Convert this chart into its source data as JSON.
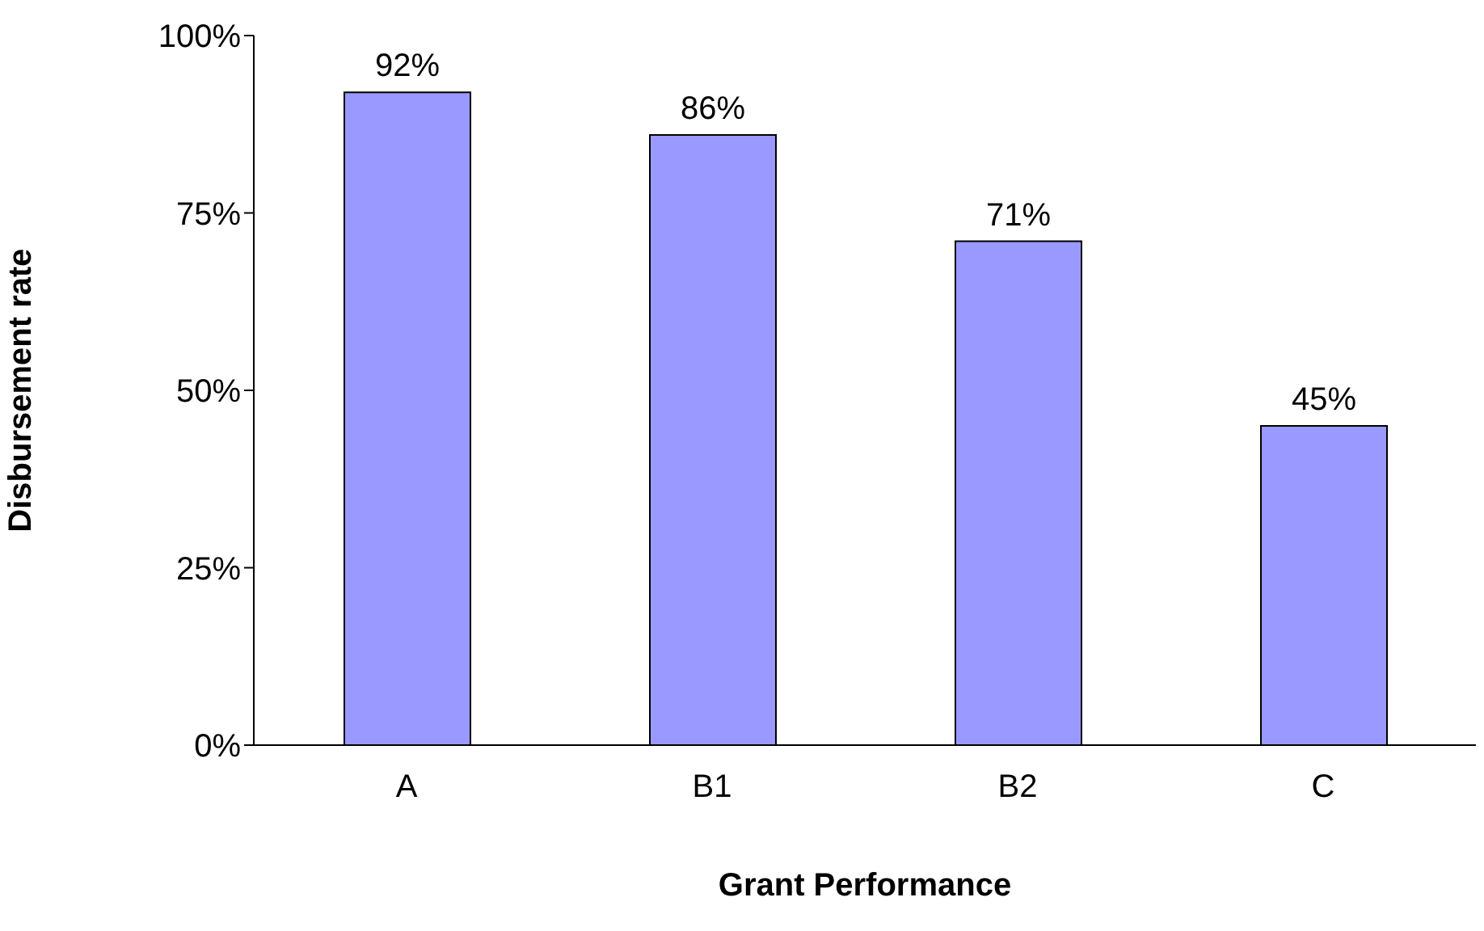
{
  "chart_data": {
    "type": "bar",
    "xlabel": "Grant Performance",
    "ylabel": "Disbursement rate",
    "categories": [
      "A",
      "B1",
      "B2",
      "C"
    ],
    "values": [
      92,
      86,
      71,
      45
    ],
    "color": "#9999ff",
    "value_labels": [
      "92%",
      "86%",
      "71%",
      "45%"
    ],
    "ylim": [
      0,
      100
    ],
    "yticks": [
      {
        "value": 0,
        "label": "0%"
      },
      {
        "value": 25,
        "label": "25%"
      },
      {
        "value": 50,
        "label": "50%"
      },
      {
        "value": 75,
        "label": "75%"
      },
      {
        "value": 100,
        "label": "100%"
      }
    ],
    "grid": false,
    "legend": false
  }
}
